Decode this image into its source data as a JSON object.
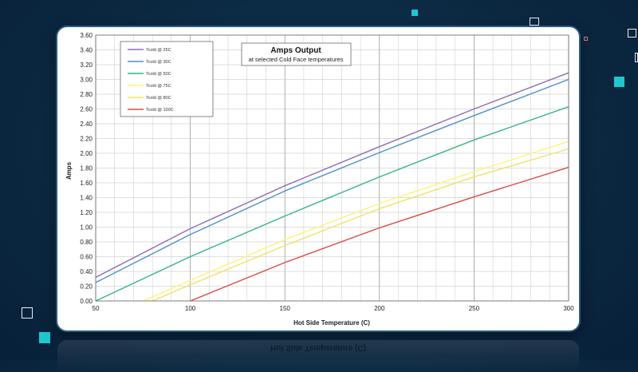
{
  "reflection_text": "Hot Side Temperature (C)",
  "chart_data": {
    "type": "line",
    "title": "Amps Output",
    "subtitle": "at selected Cold Face temperatures",
    "xlabel": "Hot Side Temperature (C)",
    "ylabel": "Amps",
    "xlim": [
      50,
      300
    ],
    "ylim": [
      0,
      3.6
    ],
    "xticks": [
      "50",
      "100",
      "150",
      "200",
      "250",
      "300"
    ],
    "yticks": [
      "0.00",
      "0.20",
      "0.40",
      "0.60",
      "0.80",
      "1.00",
      "1.20",
      "1.40",
      "1.60",
      "1.80",
      "2.00",
      "2.20",
      "2.40",
      "2.60",
      "2.80",
      "3.00",
      "3.20",
      "3.40",
      "3.60"
    ],
    "grid": true,
    "legend_position": "top-left",
    "series": [
      {
        "name": "Tcold @ 25C",
        "color": "#8e6db3",
        "x": [
          50,
          100,
          150,
          200,
          250,
          300
        ],
        "y": [
          0.32,
          0.98,
          1.56,
          2.09,
          2.6,
          3.09
        ]
      },
      {
        "name": "Tcold @ 30C",
        "color": "#4a90c8",
        "x": [
          50,
          100,
          150,
          200,
          250,
          300
        ],
        "y": [
          0.25,
          0.9,
          1.49,
          2.01,
          2.51,
          3.0
        ]
      },
      {
        "name": "Tcold @ 50C",
        "color": "#34b57c",
        "x": [
          50,
          100,
          150,
          200,
          250,
          300
        ],
        "y": [
          0.0,
          0.6,
          1.15,
          1.68,
          2.18,
          2.63
        ]
      },
      {
        "name": "Tcold @ 75C",
        "color": "#fff27a",
        "x": [
          75,
          100,
          150,
          200,
          250,
          300
        ],
        "y": [
          0.0,
          0.28,
          0.83,
          1.32,
          1.75,
          2.16
        ]
      },
      {
        "name": "Tcold @ 80C",
        "color": "#f0e266",
        "x": [
          80,
          100,
          150,
          200,
          250,
          300
        ],
        "y": [
          0.0,
          0.22,
          0.75,
          1.25,
          1.68,
          2.06
        ]
      },
      {
        "name": "Tcold @ 100C",
        "color": "#d94a4a",
        "x": [
          100,
          150,
          200,
          250,
          300
        ],
        "y": [
          0.0,
          0.52,
          0.99,
          1.41,
          1.81
        ]
      }
    ]
  }
}
